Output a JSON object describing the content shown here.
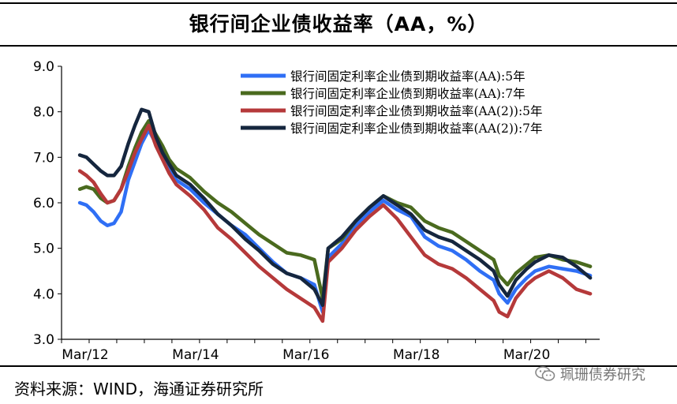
{
  "chart_data": {
    "type": "line",
    "title": "银行间企业债收益率（AA，%）",
    "x_ticks": [
      "Mar/12",
      "Mar/14",
      "Mar/16",
      "Mar/18",
      "Mar/20"
    ],
    "y_ticks": [
      "3.0",
      "4.0",
      "5.0",
      "6.0",
      "7.0",
      "8.0",
      "9.0"
    ],
    "ylim": [
      3.0,
      9.0
    ],
    "xlim": [
      2012.17,
      2021.92
    ],
    "legend_position": "top-right",
    "series": [
      {
        "name": "银行间固定利率企业债到期收益率(AA):5年",
        "color": "#2f6ff5",
        "x": [
          2012.5,
          2012.62,
          2012.75,
          2012.88,
          2013.0,
          2013.12,
          2013.25,
          2013.38,
          2013.5,
          2013.62,
          2013.75,
          2013.88,
          2014.0,
          2014.12,
          2014.25,
          2014.5,
          2014.75,
          2015.0,
          2015.25,
          2015.5,
          2015.75,
          2016.0,
          2016.25,
          2016.5,
          2016.75,
          2016.9,
          2017.0,
          2017.25,
          2017.5,
          2017.75,
          2018.0,
          2018.25,
          2018.5,
          2018.75,
          2019.0,
          2019.25,
          2019.5,
          2019.75,
          2020.0,
          2020.1,
          2020.25,
          2020.4,
          2020.6,
          2020.75,
          2021.0,
          2021.25,
          2021.5,
          2021.75
        ],
        "y": [
          6.0,
          5.95,
          5.8,
          5.6,
          5.5,
          5.55,
          5.8,
          6.5,
          6.9,
          7.3,
          7.6,
          7.3,
          7.0,
          6.7,
          6.5,
          6.3,
          6.0,
          5.75,
          5.5,
          5.3,
          5.0,
          4.7,
          4.45,
          4.35,
          4.2,
          3.6,
          4.8,
          5.1,
          5.5,
          5.8,
          6.05,
          5.85,
          5.7,
          5.25,
          5.05,
          4.95,
          4.75,
          4.5,
          4.3,
          4.0,
          3.8,
          4.1,
          4.35,
          4.5,
          4.6,
          4.55,
          4.5,
          4.4
        ]
      },
      {
        "name": "银行间固定利率企业债到期收益率(AA):7年",
        "color": "#4a6a1e",
        "x": [
          2012.5,
          2012.62,
          2012.75,
          2012.88,
          2013.0,
          2013.12,
          2013.25,
          2013.38,
          2013.5,
          2013.62,
          2013.75,
          2013.88,
          2014.0,
          2014.12,
          2014.25,
          2014.5,
          2014.75,
          2015.0,
          2015.25,
          2015.5,
          2015.75,
          2016.0,
          2016.25,
          2016.5,
          2016.75,
          2016.9,
          2017.0,
          2017.25,
          2017.5,
          2017.75,
          2018.0,
          2018.25,
          2018.5,
          2018.75,
          2019.0,
          2019.25,
          2019.5,
          2019.75,
          2020.0,
          2020.1,
          2020.25,
          2020.4,
          2020.6,
          2020.75,
          2021.0,
          2021.25,
          2021.5,
          2021.75
        ],
        "y": [
          6.3,
          6.35,
          6.3,
          6.1,
          6.0,
          6.05,
          6.3,
          6.8,
          7.2,
          7.55,
          7.8,
          7.5,
          7.25,
          6.95,
          6.75,
          6.55,
          6.25,
          6.0,
          5.8,
          5.55,
          5.3,
          5.1,
          4.9,
          4.85,
          4.75,
          3.9,
          5.0,
          5.2,
          5.6,
          5.9,
          6.15,
          6.0,
          5.9,
          5.6,
          5.45,
          5.35,
          5.15,
          4.95,
          4.75,
          4.4,
          4.2,
          4.45,
          4.65,
          4.8,
          4.85,
          4.75,
          4.7,
          4.6
        ]
      },
      {
        "name": "银行间固定利率企业债到期收益率(AA(2)):5年",
        "color": "#b5393a",
        "x": [
          2012.5,
          2012.62,
          2012.75,
          2012.88,
          2013.0,
          2013.12,
          2013.25,
          2013.38,
          2013.5,
          2013.62,
          2013.75,
          2013.88,
          2014.0,
          2014.12,
          2014.25,
          2014.5,
          2014.75,
          2015.0,
          2015.25,
          2015.5,
          2015.75,
          2016.0,
          2016.25,
          2016.5,
          2016.75,
          2016.9,
          2017.0,
          2017.25,
          2017.5,
          2017.75,
          2018.0,
          2018.25,
          2018.5,
          2018.75,
          2019.0,
          2019.25,
          2019.5,
          2019.75,
          2020.0,
          2020.1,
          2020.25,
          2020.4,
          2020.6,
          2020.75,
          2021.0,
          2021.25,
          2021.5,
          2021.75
        ],
        "y": [
          6.7,
          6.6,
          6.45,
          6.2,
          6.0,
          6.05,
          6.3,
          6.7,
          7.1,
          7.4,
          7.7,
          7.25,
          6.95,
          6.65,
          6.4,
          6.15,
          5.85,
          5.45,
          5.2,
          4.9,
          4.6,
          4.35,
          4.1,
          3.9,
          3.7,
          3.4,
          4.7,
          5.0,
          5.4,
          5.7,
          5.95,
          5.65,
          5.25,
          4.85,
          4.65,
          4.55,
          4.35,
          4.1,
          3.85,
          3.6,
          3.5,
          3.9,
          4.2,
          4.35,
          4.5,
          4.35,
          4.1,
          4.0
        ]
      },
      {
        "name": "银行间固定利率企业债到期收益率(AA(2)):7年",
        "color": "#15263e",
        "x": [
          2012.5,
          2012.62,
          2012.75,
          2012.88,
          2013.0,
          2013.12,
          2013.25,
          2013.38,
          2013.5,
          2013.62,
          2013.75,
          2013.88,
          2014.0,
          2014.12,
          2014.25,
          2014.5,
          2014.75,
          2015.0,
          2015.25,
          2015.5,
          2015.75,
          2016.0,
          2016.25,
          2016.5,
          2016.75,
          2016.9,
          2017.0,
          2017.25,
          2017.5,
          2017.75,
          2018.0,
          2018.25,
          2018.5,
          2018.75,
          2019.0,
          2019.25,
          2019.5,
          2019.75,
          2020.0,
          2020.1,
          2020.25,
          2020.4,
          2020.6,
          2020.75,
          2021.0,
          2021.25,
          2021.5,
          2021.75
        ],
        "y": [
          7.05,
          7.0,
          6.85,
          6.7,
          6.6,
          6.6,
          6.8,
          7.3,
          7.7,
          8.05,
          8.0,
          7.45,
          7.1,
          6.85,
          6.6,
          6.4,
          6.1,
          5.75,
          5.5,
          5.2,
          4.95,
          4.65,
          4.45,
          4.35,
          4.1,
          3.75,
          5.0,
          5.25,
          5.6,
          5.9,
          6.15,
          5.95,
          5.75,
          5.4,
          5.25,
          5.15,
          4.95,
          4.75,
          4.5,
          4.2,
          3.95,
          4.3,
          4.55,
          4.7,
          4.85,
          4.8,
          4.6,
          4.35
        ]
      }
    ]
  },
  "source_text": "资料来源：WIND，海通证券研究所",
  "watermark_text": "珮珊债券研究"
}
